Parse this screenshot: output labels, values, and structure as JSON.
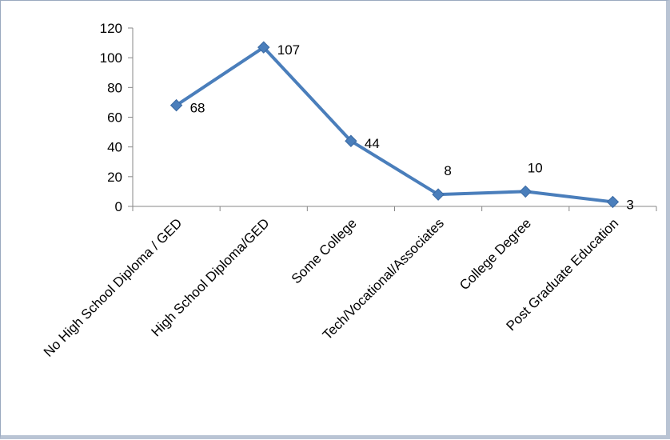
{
  "chart_data": {
    "type": "line",
    "categories": [
      "No High School Diploma / GED",
      "High School Diploma/GED",
      "Some College",
      "Tech/Vocational/Associates",
      "College Degree",
      "Post Graduate Education"
    ],
    "values": [
      68,
      107,
      44,
      8,
      10,
      3
    ],
    "data_labels": [
      "68",
      "107",
      "44",
      "8",
      "10",
      "3"
    ],
    "data_label_positions": [
      "right",
      "right",
      "right",
      "above",
      "above",
      "right"
    ],
    "title": "",
    "xlabel": "",
    "ylabel": "",
    "ylim": [
      0,
      120
    ],
    "yticks": [
      0,
      20,
      40,
      60,
      80,
      100,
      120
    ],
    "ytick_labels": [
      "0",
      "20",
      "40",
      "60",
      "80",
      "100",
      "120"
    ],
    "grid": false,
    "legend": "none",
    "marker": "diamond",
    "series_color": "#4a7ebb"
  }
}
